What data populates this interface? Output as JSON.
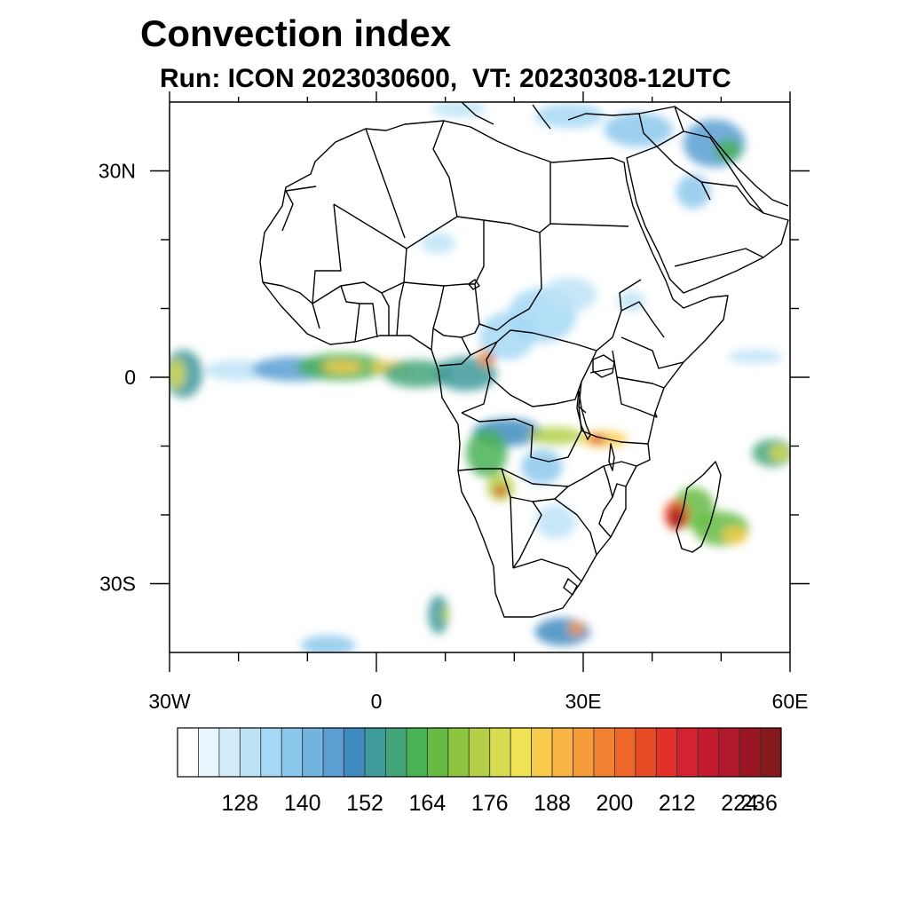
{
  "header": {
    "title": "Convection index",
    "subtitle": "Run: ICON 2023030600,  VT: 20230308-12UTC"
  },
  "map": {
    "extent": {
      "lon": [
        -30,
        60
      ],
      "lat": [
        -40,
        40
      ]
    },
    "lon_labels": [
      {
        "lon": -30,
        "label": "30W"
      },
      {
        "lon": 0,
        "label": "0"
      },
      {
        "lon": 30,
        "label": "30E"
      },
      {
        "lon": 60,
        "label": "60E"
      }
    ],
    "lat_labels": [
      {
        "lat": 30,
        "label": "30N"
      },
      {
        "lat": 0,
        "label": "0"
      },
      {
        "lat": -30,
        "label": "30S"
      }
    ],
    "minor_lon": [
      -20,
      -10,
      10,
      20,
      40,
      50
    ],
    "minor_lat": [
      20,
      10,
      -10,
      -20
    ]
  },
  "colorbar": {
    "colors": [
      "#ffffff",
      "#e8f5fc",
      "#d3ecf9",
      "#bde3f7",
      "#a4d8f4",
      "#8cc8ec",
      "#72b3e0",
      "#5b9fd2",
      "#3f8bbf",
      "#3e9a9b",
      "#42a67a",
      "#48b255",
      "#66bb45",
      "#8ec53f",
      "#b3d048",
      "#d8dc50",
      "#f2e255",
      "#f8cb4c",
      "#f8b443",
      "#f69b3a",
      "#f28131",
      "#ee6629",
      "#e84c24",
      "#e0312b",
      "#d42330",
      "#c41b2e",
      "#b2182b",
      "#9b1625",
      "#851a1e"
    ],
    "labels": [
      {
        "index": 3,
        "text": "128"
      },
      {
        "index": 6,
        "text": "140"
      },
      {
        "index": 9,
        "text": "152"
      },
      {
        "index": 12,
        "text": "164"
      },
      {
        "index": 15,
        "text": "176"
      },
      {
        "index": 18,
        "text": "188"
      },
      {
        "index": 21,
        "text": "200"
      },
      {
        "index": 24,
        "text": "212"
      },
      {
        "index": 27,
        "text": "224"
      },
      {
        "index": 30,
        "text": "236"
      }
    ]
  },
  "convection_cells": [
    {
      "lon": -28,
      "lat": 0.5,
      "rx": 2.8,
      "ry": 3.5,
      "level": 9
    },
    {
      "lon": -29,
      "lat": 0.5,
      "rx": 1.2,
      "ry": 2.2,
      "level": 15
    },
    {
      "lon": -20,
      "lat": 1.0,
      "rx": 5.0,
      "ry": 1.5,
      "level": 3
    },
    {
      "lon": -12,
      "lat": 1.2,
      "rx": 6.0,
      "ry": 1.8,
      "level": 7
    },
    {
      "lon": -5,
      "lat": 1.5,
      "rx": 6.5,
      "ry": 2.0,
      "level": 11
    },
    {
      "lon": -5,
      "lat": 1.5,
      "rx": 3.0,
      "ry": 0.9,
      "level": 17
    },
    {
      "lon": 2,
      "lat": 1.5,
      "rx": 3.0,
      "ry": 0.9,
      "level": 17
    },
    {
      "lon": 6,
      "lat": 0.5,
      "rx": 5.0,
      "ry": 2.0,
      "level": 10
    },
    {
      "lon": 13,
      "lat": 0.5,
      "rx": 4.5,
      "ry": 2.5,
      "level": 9
    },
    {
      "lon": 16,
      "lat": 3.0,
      "rx": 1.2,
      "ry": 1.5,
      "level": 19
    },
    {
      "lon": 16.5,
      "lat": 3.0,
      "rx": 0.5,
      "ry": 0.7,
      "level": 25
    },
    {
      "lon": 19,
      "lat": 6.0,
      "rx": 4.0,
      "ry": 3.5,
      "level": 4
    },
    {
      "lon": 24,
      "lat": 9.0,
      "rx": 5.0,
      "ry": 4.0,
      "level": 4
    },
    {
      "lon": 28,
      "lat": 12.0,
      "rx": 4.0,
      "ry": 2.5,
      "level": 3
    },
    {
      "lon": 37,
      "lat": 11.0,
      "rx": 2.0,
      "ry": 1.5,
      "level": 3
    },
    {
      "lon": 9,
      "lat": 19.5,
      "rx": 2.5,
      "ry": 1.5,
      "level": 3
    },
    {
      "lon": 19,
      "lat": -8.0,
      "rx": 5.0,
      "ry": 2.0,
      "level": 8
    },
    {
      "lon": 26,
      "lat": -8.5,
      "rx": 4.0,
      "ry": 1.3,
      "level": 14
    },
    {
      "lon": 33,
      "lat": -9.0,
      "rx": 3.5,
      "ry": 1.2,
      "level": 17
    },
    {
      "lon": 32,
      "lat": -9.0,
      "rx": 1.2,
      "ry": 0.6,
      "level": 24
    },
    {
      "lon": 16,
      "lat": -11.0,
      "rx": 3.0,
      "ry": 3.5,
      "level": 11
    },
    {
      "lon": 18,
      "lat": -16.0,
      "rx": 2.0,
      "ry": 2.0,
      "level": 14
    },
    {
      "lon": 18,
      "lat": -16.5,
      "rx": 0.9,
      "ry": 0.8,
      "level": 23
    },
    {
      "lon": 24,
      "lat": -13.0,
      "rx": 3.0,
      "ry": 2.5,
      "level": 5
    },
    {
      "lon": 46,
      "lat": -19.0,
      "rx": 3.0,
      "ry": 3.0,
      "level": 12
    },
    {
      "lon": 43.5,
      "lat": -20.0,
      "rx": 1.8,
      "ry": 2.2,
      "level": 22
    },
    {
      "lon": 43.5,
      "lat": -20.5,
      "rx": 1.0,
      "ry": 1.4,
      "level": 27
    },
    {
      "lon": 50,
      "lat": -22.0,
      "rx": 4.0,
      "ry": 2.5,
      "level": 12
    },
    {
      "lon": 52,
      "lat": -23.0,
      "rx": 1.8,
      "ry": 1.3,
      "level": 17
    },
    {
      "lon": 57.5,
      "lat": -11.0,
      "rx": 3.0,
      "ry": 2.0,
      "level": 10
    },
    {
      "lon": 58.5,
      "lat": -11.0,
      "rx": 1.5,
      "ry": 1.2,
      "level": 15
    },
    {
      "lon": 55,
      "lat": 3.0,
      "rx": 4.0,
      "ry": 1.0,
      "level": 3
    },
    {
      "lon": 49,
      "lat": 34.0,
      "rx": 4.5,
      "ry": 3.5,
      "level": 7
    },
    {
      "lon": 51,
      "lat": 33.0,
      "rx": 2.0,
      "ry": 1.6,
      "level": 11
    },
    {
      "lon": 46,
      "lat": 27.0,
      "rx": 2.5,
      "ry": 2.5,
      "level": 5
    },
    {
      "lon": 38,
      "lat": 36.0,
      "rx": 5.0,
      "ry": 2.5,
      "level": 5
    },
    {
      "lon": 28,
      "lat": 38.0,
      "rx": 5.0,
      "ry": 1.8,
      "level": 4
    },
    {
      "lon": 12,
      "lat": 39.0,
      "rx": 4.0,
      "ry": 1.2,
      "level": 3
    },
    {
      "lon": 9,
      "lat": -34.5,
      "rx": 1.5,
      "ry": 2.8,
      "level": 9
    },
    {
      "lon": 10,
      "lat": -34.5,
      "rx": 0.5,
      "ry": 1.2,
      "level": 14
    },
    {
      "lon": 27,
      "lat": -37.0,
      "rx": 4.0,
      "ry": 2.0,
      "level": 8
    },
    {
      "lon": 29,
      "lat": -36.5,
      "rx": 1.2,
      "ry": 1.0,
      "level": 19
    },
    {
      "lon": -7,
      "lat": -39.0,
      "rx": 4.0,
      "ry": 1.5,
      "level": 5
    },
    {
      "lon": 26,
      "lat": -21.0,
      "rx": 3.0,
      "ry": 2.5,
      "level": 3
    }
  ]
}
